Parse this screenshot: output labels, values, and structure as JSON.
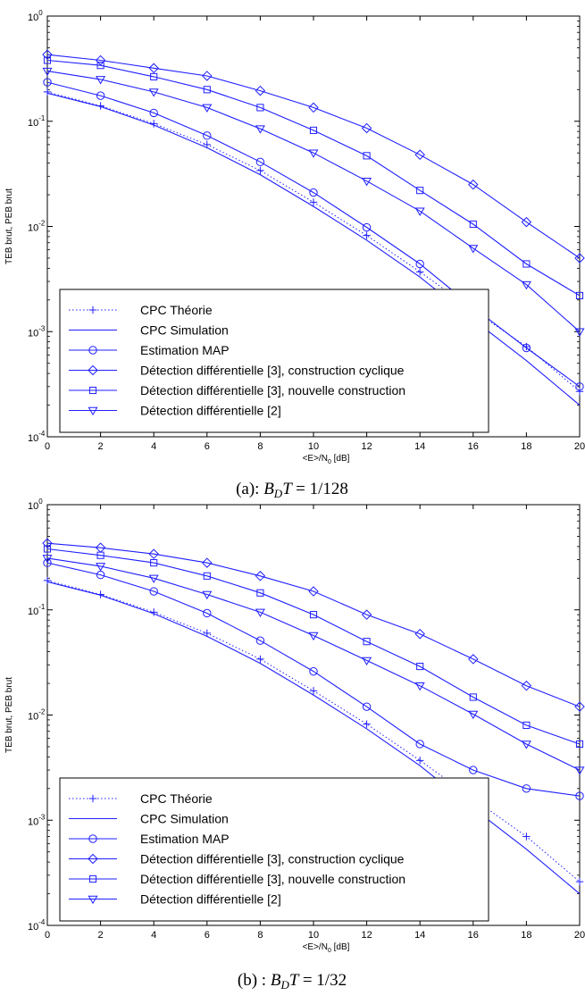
{
  "chart_data": [
    {
      "type": "line",
      "caption_prefix": "(a):",
      "caption_formula": "B",
      "caption_sub": "D",
      "caption_tail": "T",
      "caption_value": "= 1/128",
      "xlabel": "<E>/N",
      "xlabel_sub": "0",
      "xlabel_unit": " [dB]",
      "ylabel": "TEB brut, PEB brut",
      "xlim": [
        0,
        20
      ],
      "ylim": [
        0.0001,
        1
      ],
      "yscale": "log",
      "x_ticks": [
        "0",
        "2",
        "4",
        "6",
        "8",
        "10",
        "12",
        "14",
        "16",
        "18",
        "20"
      ],
      "y_ticks": [
        {
          "base": "10",
          "exp": "0"
        },
        {
          "base": "10",
          "exp": "-1"
        },
        {
          "base": "10",
          "exp": "-2"
        },
        {
          "base": "10",
          "exp": "-3"
        },
        {
          "base": "10",
          "exp": "-4"
        }
      ],
      "legend_position": "bottom-left",
      "x": [
        0,
        2,
        4,
        6,
        8,
        10,
        12,
        14,
        16,
        18,
        20
      ],
      "series": [
        {
          "name": "CPC Théorie",
          "marker": "plus",
          "style": "dotted",
          "values": [
            0.19,
            0.14,
            0.095,
            0.06,
            0.034,
            0.017,
            0.0082,
            0.0037,
            0.0016,
            0.00072,
            0.00027
          ]
        },
        {
          "name": "CPC Simulation",
          "marker": "none",
          "style": "solid",
          "values": [
            0.185,
            0.138,
            0.092,
            0.056,
            0.031,
            0.0155,
            0.0074,
            0.0033,
            0.0013,
            0.00053,
            0.0002
          ]
        },
        {
          "name": "Estimation MAP",
          "marker": "circle",
          "style": "solid",
          "values": [
            0.235,
            0.175,
            0.12,
            0.073,
            0.041,
            0.021,
            0.0098,
            0.0044,
            0.0017,
            0.0007,
            0.0003
          ]
        },
        {
          "name": "Détection différentielle [3], construction cyclique",
          "marker": "diamond",
          "style": "solid",
          "values": [
            0.43,
            0.38,
            0.32,
            0.27,
            0.195,
            0.135,
            0.086,
            0.048,
            0.025,
            0.011,
            0.005
          ]
        },
        {
          "name": "Détection différentielle [3], nouvelle construction",
          "marker": "square",
          "style": "solid",
          "values": [
            0.38,
            0.34,
            0.265,
            0.2,
            0.135,
            0.082,
            0.047,
            0.022,
            0.0105,
            0.0044,
            0.0022
          ]
        },
        {
          "name": "Détection différentielle [2]",
          "marker": "triangle-down",
          "style": "solid",
          "values": [
            0.3,
            0.25,
            0.19,
            0.135,
            0.085,
            0.05,
            0.027,
            0.014,
            0.0062,
            0.0028,
            0.001
          ]
        }
      ]
    },
    {
      "type": "line",
      "caption_prefix": "(b) :",
      "caption_formula": "B",
      "caption_sub": "D",
      "caption_tail": "T",
      "caption_value": "= 1/32",
      "xlabel": "<E>/N",
      "xlabel_sub": "0",
      "xlabel_unit": " [dB]",
      "ylabel": "TEB brut, PEB brut",
      "xlim": [
        0,
        20
      ],
      "ylim": [
        0.0001,
        1
      ],
      "yscale": "log",
      "x_ticks": [
        "0",
        "2",
        "4",
        "6",
        "8",
        "10",
        "12",
        "14",
        "16",
        "18",
        "20"
      ],
      "y_ticks": [
        {
          "base": "10",
          "exp": "0"
        },
        {
          "base": "10",
          "exp": "-1"
        },
        {
          "base": "10",
          "exp": "-2"
        },
        {
          "base": "10",
          "exp": "-3"
        },
        {
          "base": "10",
          "exp": "-4"
        }
      ],
      "legend_position": "bottom-left",
      "x": [
        0,
        2,
        4,
        6,
        8,
        10,
        12,
        14,
        16,
        18,
        20
      ],
      "series": [
        {
          "name": "CPC Théorie",
          "marker": "plus",
          "style": "dotted",
          "values": [
            0.19,
            0.14,
            0.095,
            0.06,
            0.034,
            0.017,
            0.0082,
            0.0037,
            0.0016,
            0.0007,
            0.00026
          ]
        },
        {
          "name": "CPC Simulation",
          "marker": "none",
          "style": "solid",
          "values": [
            0.185,
            0.138,
            0.092,
            0.056,
            0.031,
            0.0155,
            0.0074,
            0.0033,
            0.0013,
            0.00053,
            0.0002
          ]
        },
        {
          "name": "Estimation MAP",
          "marker": "circle",
          "style": "solid",
          "values": [
            0.28,
            0.215,
            0.15,
            0.093,
            0.051,
            0.026,
            0.012,
            0.0053,
            0.003,
            0.002,
            0.0017
          ]
        },
        {
          "name": "Détection différentielle [3], construction cyclique",
          "marker": "diamond",
          "style": "solid",
          "values": [
            0.43,
            0.39,
            0.34,
            0.28,
            0.21,
            0.15,
            0.09,
            0.059,
            0.034,
            0.019,
            0.012
          ]
        },
        {
          "name": "Détection différentielle [3], nouvelle construction",
          "marker": "square",
          "style": "solid",
          "values": [
            0.38,
            0.33,
            0.28,
            0.21,
            0.145,
            0.09,
            0.05,
            0.029,
            0.0148,
            0.008,
            0.0053
          ]
        },
        {
          "name": "Détection différentielle [2]",
          "marker": "triangle-down",
          "style": "solid",
          "values": [
            0.31,
            0.26,
            0.2,
            0.14,
            0.095,
            0.057,
            0.033,
            0.019,
            0.0102,
            0.0053,
            0.003
          ]
        }
      ]
    }
  ],
  "colors": {
    "line": "#1f1fff",
    "axis": "#000000",
    "background": "#ffffff"
  }
}
